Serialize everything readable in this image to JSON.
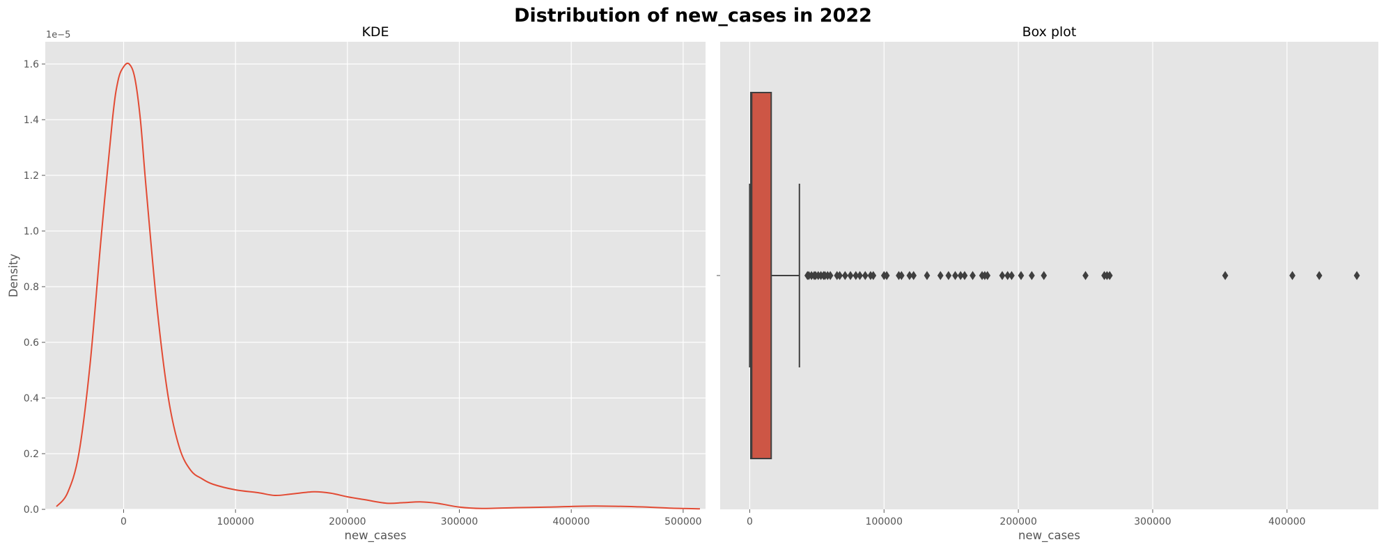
{
  "figure": {
    "suptitle": "Distribution of new_cases in 2022"
  },
  "colors": {
    "panel_bg": "#e5e5e5",
    "grid": "#ffffff",
    "kde_line": "#e24a33",
    "box_fill": "#cd5645",
    "box_edge": "#3f3f3f",
    "tick_text": "#555555"
  },
  "chart_data": [
    {
      "type": "line",
      "title": "KDE",
      "xlabel": "new_cases",
      "ylabel": "Density",
      "y_offset_label": "1e−5",
      "grid": true,
      "xlim": [
        -70000,
        520000
      ],
      "ylim": [
        0,
        1.68
      ],
      "x_ticks": [
        0,
        100000,
        200000,
        300000,
        400000,
        500000
      ],
      "x_tick_labels": [
        "0",
        "100000",
        "200000",
        "300000",
        "400000",
        "500000"
      ],
      "y_ticks": [
        0.0,
        0.2,
        0.4,
        0.6,
        0.8,
        1.0,
        1.2,
        1.4,
        1.6
      ],
      "y_tick_labels": [
        "0.0",
        "0.2",
        "0.4",
        "0.6",
        "0.8",
        "1.0",
        "1.2",
        "1.4",
        "1.6"
      ],
      "x": [
        -60000,
        -50000,
        -40000,
        -30000,
        -20000,
        -10000,
        -5000,
        0,
        5000,
        10000,
        15000,
        20000,
        30000,
        40000,
        50000,
        60000,
        70000,
        80000,
        100000,
        120000,
        135000,
        150000,
        170000,
        185000,
        200000,
        215000,
        235000,
        250000,
        265000,
        280000,
        300000,
        320000,
        350000,
        380000,
        420000,
        460000,
        490000,
        515000
      ],
      "y": [
        0.01,
        0.06,
        0.2,
        0.52,
        0.98,
        1.4,
        1.54,
        1.59,
        1.6,
        1.55,
        1.4,
        1.16,
        0.72,
        0.4,
        0.22,
        0.14,
        0.11,
        0.09,
        0.07,
        0.06,
        0.05,
        0.055,
        0.063,
        0.058,
        0.045,
        0.035,
        0.022,
        0.024,
        0.027,
        0.022,
        0.008,
        0.003,
        0.006,
        0.008,
        0.012,
        0.009,
        0.004,
        0.002
      ]
    },
    {
      "type": "box",
      "title": "Box plot",
      "xlabel": "new_cases",
      "grid": true,
      "xlim": [
        -22000,
        468000
      ],
      "x_ticks": [
        0,
        100000,
        200000,
        300000,
        400000
      ],
      "x_tick_labels": [
        "0",
        "100000",
        "200000",
        "300000",
        "400000"
      ],
      "y_ticks": [
        0
      ],
      "y_tick_labels": [
        ""
      ],
      "min": 0,
      "q1": 800,
      "median": 1500,
      "q3": 16000,
      "whisker_low": 0,
      "whisker_high": 37000,
      "outliers": [
        43000,
        44000,
        46000,
        48000,
        49000,
        51000,
        53000,
        55000,
        56000,
        58000,
        60000,
        65000,
        67000,
        71000,
        75000,
        79000,
        82000,
        86000,
        90000,
        92000,
        100000,
        102000,
        111000,
        113000,
        119000,
        122000,
        132000,
        142000,
        148000,
        153000,
        157000,
        160000,
        166000,
        173000,
        175000,
        177000,
        188000,
        192000,
        195000,
        202000,
        210000,
        219000,
        250000,
        264000,
        266000,
        268000,
        354000,
        404000,
        424000,
        452000
      ]
    }
  ]
}
